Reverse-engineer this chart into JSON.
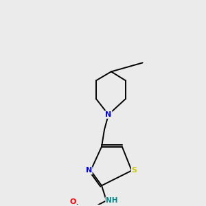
{
  "bg_color": "#ebebeb",
  "atom_colors": {
    "N": "#0000ee",
    "S": "#cccc00",
    "O": "#ff0000",
    "H": "#008888"
  },
  "lw": 1.4,
  "fig_size": [
    3.0,
    3.0
  ],
  "dpi": 100
}
